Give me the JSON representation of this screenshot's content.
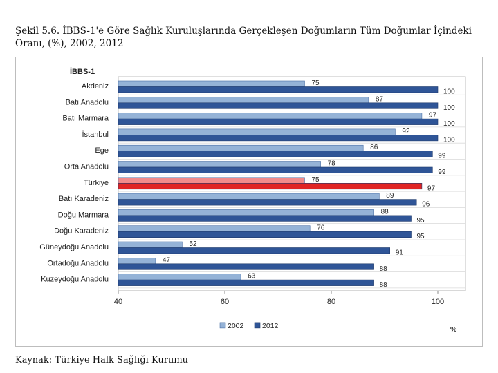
{
  "caption": {
    "line1": "Şekil 5.6. İBBS-1'e Göre Sağlık Kuruluşlarında Gerçekleşen Doğumların Tüm Doğumlar İçindeki",
    "line2": "Oranı, (%),  2002, 2012"
  },
  "source": "Kaynak: Türkiye Halk Sağlığı Kurumu",
  "colors": {
    "s2002": "#95b3d7",
    "s2012": "#2f5597",
    "highlight2002": "#f28b8b",
    "highlight2012": "#e02424"
  },
  "chart_data": {
    "type": "bar",
    "orientation": "horizontal",
    "group_title": "İBBS-1",
    "categories": [
      "Akdeniz",
      "Batı Anadolu",
      "Batı Marmara",
      "İstanbul",
      "Ege",
      "Orta Anadolu",
      "Türkiye",
      "Batı Karadeniz",
      "Doğu Marmara",
      "Doğu Karadeniz",
      "Güneydoğu Anadolu",
      "Ortadoğu Anadolu",
      "Kuzeydoğu Anadolu"
    ],
    "highlight": "Türkiye",
    "series": [
      {
        "name": "2002",
        "values": [
          75,
          87,
          97,
          92,
          86,
          78,
          75,
          89,
          88,
          76,
          52,
          47,
          63
        ]
      },
      {
        "name": "2012",
        "values": [
          100,
          100,
          100,
          100,
          99,
          99,
          97,
          96,
          95,
          95,
          91,
          88,
          88
        ]
      }
    ],
    "xlim": [
      40,
      100
    ],
    "xticks": [
      "40",
      "60",
      "80",
      "100"
    ],
    "xlabel": "%",
    "legend": [
      "2002",
      "2012"
    ],
    "legend_position": "bottom"
  }
}
